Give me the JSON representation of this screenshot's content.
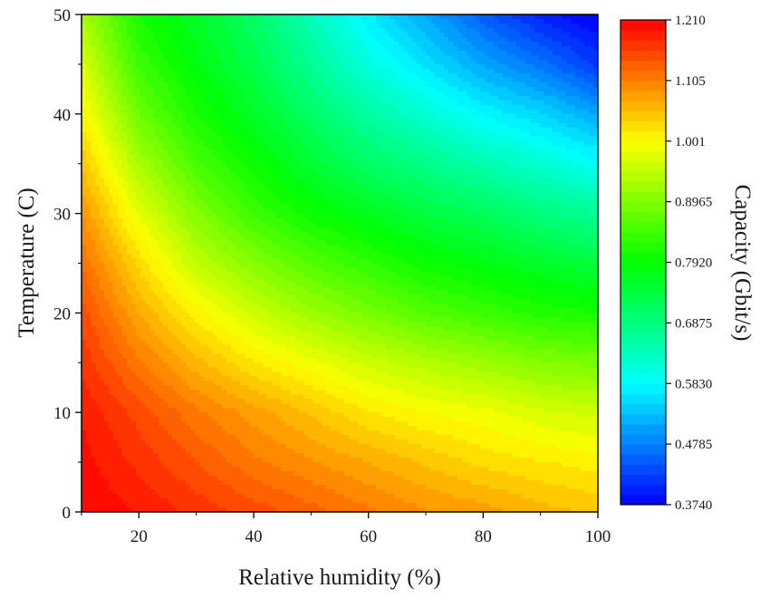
{
  "chart_data": {
    "type": "heatmap",
    "title": "",
    "xlabel": "Relative humidity (%)",
    "ylabel": "Temperature (C)",
    "xlim": [
      10,
      100
    ],
    "ylim": [
      0,
      50
    ],
    "x_ticks": [
      20,
      40,
      60,
      80,
      100
    ],
    "y_ticks": [
      0,
      10,
      20,
      30,
      40,
      50
    ],
    "x_tick_labels": [
      "20",
      "40",
      "60",
      "80",
      "100"
    ],
    "y_tick_labels": [
      "0",
      "10",
      "20",
      "30",
      "40",
      "50"
    ],
    "colorbar": {
      "label": "Capacity (Gbit/s)",
      "range": [
        0.374,
        1.21
      ],
      "tick_labels": [
        "1.210",
        "1.105",
        "1.001",
        "0.8965",
        "0.7920",
        "0.6875",
        "0.5830",
        "0.4785",
        "0.3740"
      ],
      "colormap": [
        "#0000ff",
        "#00ffff",
        "#00ff00",
        "#ffff00",
        "#ff0000"
      ],
      "levels": 48
    },
    "x": [
      10,
      20,
      30,
      40,
      50,
      60,
      70,
      80,
      90,
      100
    ],
    "y": [
      0,
      5,
      10,
      15,
      20,
      25,
      30,
      35,
      40,
      45,
      50
    ],
    "z": [
      [
        1.21,
        1.19,
        1.17,
        1.15,
        1.13,
        1.11,
        1.09,
        1.08,
        1.06,
        1.05
      ],
      [
        1.2,
        1.17,
        1.14,
        1.11,
        1.09,
        1.07,
        1.05,
        1.03,
        1.02,
        1.01
      ],
      [
        1.19,
        1.15,
        1.11,
        1.08,
        1.05,
        1.02,
        1.0,
        0.99,
        0.97,
        0.96
      ],
      [
        1.17,
        1.11,
        1.06,
        1.02,
        0.99,
        0.96,
        0.94,
        0.92,
        0.9,
        0.89
      ],
      [
        1.15,
        1.07,
        1.01,
        0.96,
        0.92,
        0.89,
        0.86,
        0.84,
        0.82,
        0.81
      ],
      [
        1.12,
        1.03,
        0.95,
        0.9,
        0.86,
        0.83,
        0.8,
        0.78,
        0.76,
        0.74
      ],
      [
        1.09,
        0.98,
        0.9,
        0.84,
        0.8,
        0.77,
        0.74,
        0.72,
        0.69,
        0.67
      ],
      [
        1.05,
        0.93,
        0.85,
        0.8,
        0.75,
        0.71,
        0.68,
        0.65,
        0.62,
        0.59
      ],
      [
        1.01,
        0.88,
        0.81,
        0.76,
        0.71,
        0.66,
        0.62,
        0.58,
        0.55,
        0.51
      ],
      [
        0.97,
        0.84,
        0.78,
        0.73,
        0.67,
        0.61,
        0.56,
        0.51,
        0.47,
        0.42
      ],
      [
        0.93,
        0.81,
        0.76,
        0.71,
        0.64,
        0.57,
        0.51,
        0.45,
        0.4,
        0.37
      ]
    ]
  }
}
